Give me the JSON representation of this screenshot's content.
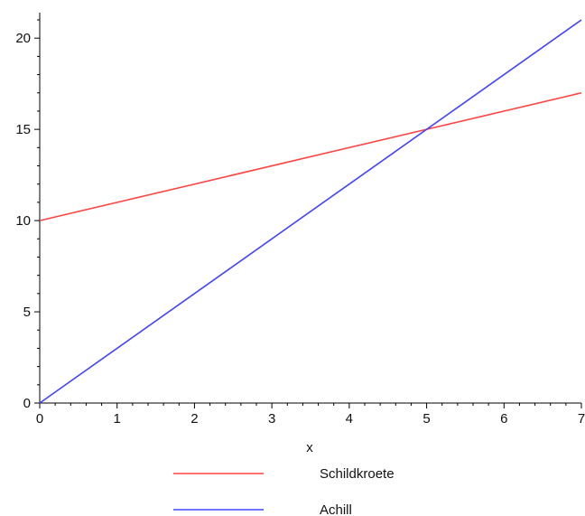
{
  "chart_data": {
    "type": "line",
    "title": "",
    "xlabel": "x",
    "ylabel": "",
    "xlim": [
      0,
      7
    ],
    "ylim": [
      0,
      21
    ],
    "x_ticks": [
      0,
      1,
      2,
      3,
      4,
      5,
      6,
      7
    ],
    "y_ticks": [
      0,
      5,
      10,
      15,
      20
    ],
    "grid": false,
    "legend_position": "bottom",
    "series": [
      {
        "name": "Schildkroete",
        "color": "#ff4444",
        "x": [
          0,
          7
        ],
        "y": [
          10,
          17
        ]
      },
      {
        "name": "Achill",
        "color": "#4444ff",
        "x": [
          0,
          7
        ],
        "y": [
          0,
          21
        ]
      }
    ]
  }
}
